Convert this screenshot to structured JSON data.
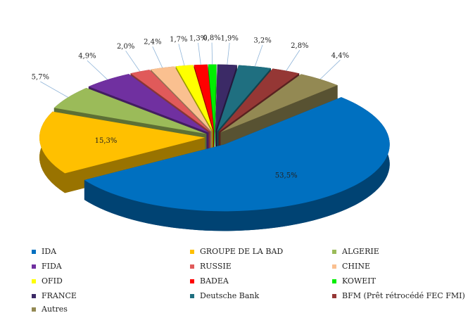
{
  "chart_data": {
    "type": "pie",
    "categories": [
      "IDA",
      "GROUPE DE LA BAD",
      "ALGERIE",
      "FIDA",
      "RUSSIE",
      "CHINE",
      "OFID",
      "BADEA",
      "KOWEIT",
      "FRANCE",
      "Deutsche Bank",
      "BFM (Prêt rétrocédé FEC FMI)",
      "Autres"
    ],
    "values": [
      53.5,
      15.3,
      5.7,
      4.9,
      2.0,
      2.4,
      1.7,
      1.3,
      0.8,
      1.9,
      3.2,
      2.8,
      4.4
    ],
    "value_labels": [
      "53,5%",
      "15,3%",
      "5,7%",
      "4,9%",
      "2,0%",
      "2,4%",
      "1,7%",
      "1,3%",
      "0,8%",
      "1,9%",
      "3,2%",
      "2,8%",
      "4,4%"
    ],
    "colors": [
      "#0070c0",
      "#ffc000",
      "#9bbb59",
      "#7030a0",
      "#e05a5a",
      "#fac090",
      "#ffff00",
      "#ff0000",
      "#00ee00",
      "#3b2a66",
      "#1f6f80",
      "#953735",
      "#938953"
    ]
  }
}
